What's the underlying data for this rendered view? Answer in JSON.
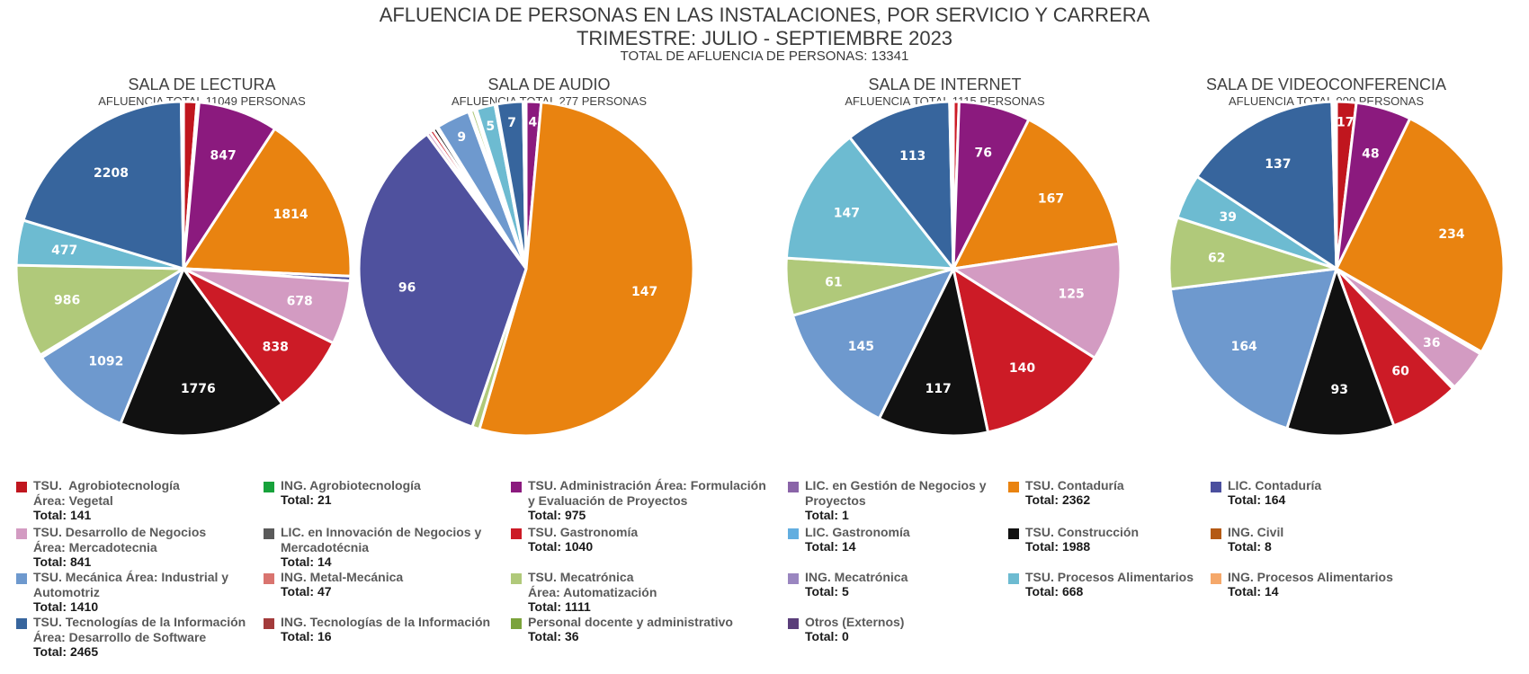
{
  "header": {
    "title": "AFLUENCIA DE PERSONAS EN LAS INSTALACIONES, POR SERVICIO Y CARRERA",
    "subtitle": "TRIMESTRE: JULIO - SEPTIEMBRE 2023",
    "total": "TOTAL DE AFLUENCIA DE PERSONAS: 13341"
  },
  "chart_data": [
    {
      "type": "pie",
      "title": "SALA DE LECTURA",
      "subtitle": "AFLUENCIA TOTAL 11049 PERSONAS",
      "slices": [
        {
          "value": 1,
          "color": "#ffffff",
          "label": ""
        },
        {
          "value": 141,
          "color": "#c0161e",
          "label": ""
        },
        {
          "value": 21,
          "color": "#ffffff",
          "label": ""
        },
        {
          "value": 847,
          "color": "#8b1a7e",
          "label": "847"
        },
        {
          "value": 1814,
          "color": "#e98310",
          "label": "1814"
        },
        {
          "value": 50,
          "color": "#4b4f9e",
          "label": ""
        },
        {
          "value": 678,
          "color": "#d39bc2",
          "label": "678"
        },
        {
          "value": 838,
          "color": "#cc1b26",
          "label": "838"
        },
        {
          "value": 1776,
          "color": "#111111",
          "label": "1776"
        },
        {
          "value": 1092,
          "color": "#6e99ce",
          "label": "1092"
        },
        {
          "value": 30,
          "color": "#d9746f",
          "label": ""
        },
        {
          "value": 986,
          "color": "#b0c97a",
          "label": "986"
        },
        {
          "value": 477,
          "color": "#6dbbd1",
          "label": "477"
        },
        {
          "value": 2208,
          "color": "#37659d",
          "label": "2208"
        },
        {
          "value": 16,
          "color": "#a33b3b",
          "label": ""
        },
        {
          "value": 8,
          "color": "#ffffff",
          "label": ""
        }
      ]
    },
    {
      "type": "pie",
      "title": "SALA DE AUDIO",
      "subtitle": "AFLUENCIA TOTAL 277 PERSONAS",
      "slices": [
        {
          "value": 4,
          "color": "#8b1a7e",
          "label": "4"
        },
        {
          "value": 147,
          "color": "#e98310",
          "label": "147"
        },
        {
          "value": 2,
          "color": "#b0c97a",
          "label": ""
        },
        {
          "value": 96,
          "color": "#4f519e",
          "label": "96"
        },
        {
          "value": 1,
          "color": "#d39bc2",
          "label": ""
        },
        {
          "value": 1,
          "color": "#cc1b26",
          "label": ""
        },
        {
          "value": 1,
          "color": "#111111",
          "label": ""
        },
        {
          "value": 0.5,
          "color": "#ffffff",
          "label": ""
        },
        {
          "value": 9,
          "color": "#6e99ce",
          "label": "9"
        },
        {
          "value": 0.6,
          "color": "#d9746f",
          "label": ""
        },
        {
          "value": 1,
          "color": "#b0c97a",
          "label": ""
        },
        {
          "value": 0.6,
          "color": "#7ba33b",
          "label": ""
        },
        {
          "value": 5,
          "color": "#6dbbd1",
          "label": "5"
        },
        {
          "value": 0.5,
          "color": "#ffffff",
          "label": ""
        },
        {
          "value": 7,
          "color": "#37659d",
          "label": "7"
        },
        {
          "value": 0.8,
          "color": "#ffffff",
          "label": ""
        }
      ]
    },
    {
      "type": "pie",
      "title": "SALA DE INTERNET",
      "subtitle": "AFLUENCIA TOTAL 1115 PERSONAS",
      "slices": [
        {
          "value": 6,
          "color": "#cc1b26",
          "label": ""
        },
        {
          "value": 76,
          "color": "#8b1a7e",
          "label": "76"
        },
        {
          "value": 167,
          "color": "#e98310",
          "label": "167"
        },
        {
          "value": 125,
          "color": "#d39bc2",
          "label": "125"
        },
        {
          "value": 140,
          "color": "#cc1b26",
          "label": "140"
        },
        {
          "value": 117,
          "color": "#111111",
          "label": "117"
        },
        {
          "value": 145,
          "color": "#6e99ce",
          "label": "145"
        },
        {
          "value": 61,
          "color": "#b0c97a",
          "label": "61"
        },
        {
          "value": 147,
          "color": "#6dbbd1",
          "label": "147"
        },
        {
          "value": 113,
          "color": "#37659d",
          "label": "113"
        },
        {
          "value": 2,
          "color": "#ffffff",
          "label": ""
        },
        {
          "value": 2,
          "color": "#a33b3b",
          "label": ""
        }
      ]
    },
    {
      "type": "pie",
      "title": "SALA DE VIDEOCONFERENCIA",
      "subtitle": "AFLUENCIA TOTAL 900 PERSONAS",
      "slices": [
        {
          "value": 17,
          "color": "#c0161e",
          "label": "17"
        },
        {
          "value": 48,
          "color": "#8b1a7e",
          "label": "48"
        },
        {
          "value": 234,
          "color": "#e98310",
          "label": "234"
        },
        {
          "value": 2,
          "color": "#4b4f9e",
          "label": ""
        },
        {
          "value": 36,
          "color": "#d39bc2",
          "label": "36"
        },
        {
          "value": 2,
          "color": "#5a5a5a",
          "label": ""
        },
        {
          "value": 60,
          "color": "#cc1b26",
          "label": "60"
        },
        {
          "value": 93,
          "color": "#111111",
          "label": "93"
        },
        {
          "value": 164,
          "color": "#6e99ce",
          "label": "164"
        },
        {
          "value": 62,
          "color": "#b0c97a",
          "label": "62"
        },
        {
          "value": 39,
          "color": "#6dbbd1",
          "label": "39"
        },
        {
          "value": 137,
          "color": "#37659d",
          "label": "137"
        },
        {
          "value": 2,
          "color": "#ffffff",
          "label": ""
        },
        {
          "value": 2,
          "color": "#d9746f",
          "label": ""
        }
      ]
    }
  ],
  "legend": [
    {
      "name": "TSU.  Agrobiotecnología\nÁrea: Vegetal",
      "total": "Total: 141",
      "color": "#c0161e"
    },
    {
      "name": "ING. Agrobiotecnología",
      "total": "Total: 21",
      "color": "#17a23b"
    },
    {
      "name": "TSU. Administración Área: Formulación\ny Evaluación de Proyectos",
      "total": "Total: 975",
      "color": "#8b1a7e"
    },
    {
      "name": "LIC. en Gestión de Negocios y\nProyectos",
      "total": "Total: 1",
      "color": "#8a64a8"
    },
    {
      "name": "TSU. Contaduría",
      "total": "Total: 2362",
      "color": "#e98310"
    },
    {
      "name": "LIC. Contaduría",
      "total": "Total: 164",
      "color": "#4b4f9e"
    },
    {
      "name": "TSU. Desarrollo de Negocios\nÁrea: Mercadotecnia",
      "total": "Total: 841",
      "color": "#d39bc2"
    },
    {
      "name": "LIC. en Innovación de Negocios y\nMercadotécnia",
      "total": "Total: 14",
      "color": "#5a5a5a"
    },
    {
      "name": "TSU. Gastronomía",
      "total": "Total: 1040",
      "color": "#cc1b26"
    },
    {
      "name": "LIC. Gastronomía",
      "total": "Total: 14",
      "color": "#62aee0"
    },
    {
      "name": "TSU. Construcción",
      "total": "Total: 1988",
      "color": "#111111"
    },
    {
      "name": "ING. Civil",
      "total": "Total: 8",
      "color": "#b45a14"
    },
    {
      "name": "TSU. Mecánica Área: Industrial y\nAutomotriz",
      "total": "Total: 1410",
      "color": "#6e99ce"
    },
    {
      "name": "ING. Metal-Mecánica",
      "total": "Total: 47",
      "color": "#d9746f"
    },
    {
      "name": "TSU. Mecatrónica\nÁrea: Automatización",
      "total": "Total: 1111",
      "color": "#b0c97a"
    },
    {
      "name": "ING. Mecatrónica",
      "total": "Total: 5",
      "color": "#9a86c0"
    },
    {
      "name": "TSU. Procesos Alimentarios",
      "total": "Total: 668",
      "color": "#6dbbd1"
    },
    {
      "name": "ING. Procesos Alimentarios",
      "total": "Total: 14",
      "color": "#f5a86a"
    },
    {
      "name": "TSU. Tecnologías de la Información\nÁrea: Desarrollo de Software",
      "total": "Total: 2465",
      "color": "#37659d"
    },
    {
      "name": "ING. Tecnologías de la Información",
      "total": "Total: 16",
      "color": "#a33b3b"
    },
    {
      "name": "Personal docente y administrativo",
      "total": "Total: 36",
      "color": "#7ba33b"
    },
    {
      "name": "Otros (Externos)",
      "total": "Total: 0",
      "color": "#5a3e7a"
    }
  ]
}
